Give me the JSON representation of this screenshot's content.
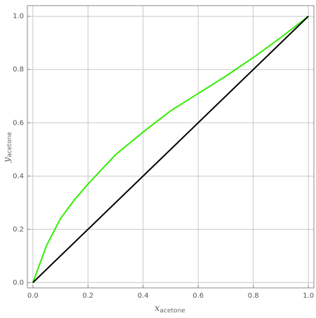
{
  "chart_data": {
    "type": "line",
    "xlabel": {
      "symbol": "x",
      "subscript": "acetone"
    },
    "ylabel": {
      "symbol": "y",
      "subscript": "acetone"
    },
    "series": [
      {
        "color": "#33ee00",
        "x": [
          0,
          0.05,
          0.1,
          0.15,
          0.2,
          0.3,
          0.4,
          0.5,
          0.6,
          0.7,
          0.8,
          0.9,
          1.0
        ],
        "values": [
          0,
          0.14,
          0.24,
          0.31,
          0.37,
          0.48,
          0.565,
          0.645,
          0.71,
          0.775,
          0.845,
          0.92,
          1.0
        ]
      },
      {
        "color": "#000000",
        "x": [
          0,
          1
        ],
        "values": [
          0,
          1
        ]
      }
    ],
    "xlim": [
      -0.02,
      1.02
    ],
    "ylim": [
      -0.02,
      1.04
    ],
    "xticks": [
      {
        "value": 0,
        "label": "0.0"
      },
      0.2,
      0.4,
      0.6,
      0.8,
      {
        "value": 1,
        "label": "1.0"
      }
    ],
    "yticks": [
      {
        "value": 0,
        "label": "0.0"
      },
      0.2,
      0.4,
      0.6,
      0.8,
      {
        "value": 1,
        "label": "1.0"
      }
    ],
    "grid": true
  }
}
